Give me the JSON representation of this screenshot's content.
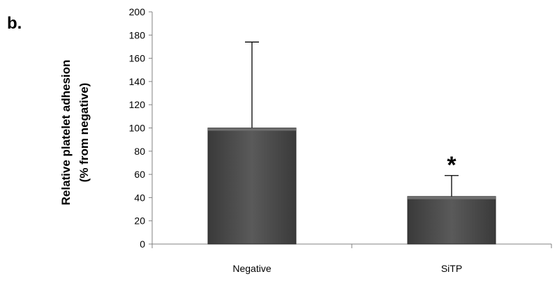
{
  "panel_label": "b.",
  "chart_data": {
    "type": "bar",
    "categories": [
      "Negative",
      "SiTP"
    ],
    "values": [
      100,
      41
    ],
    "error_upper": [
      174,
      59
    ],
    "ylabel": [
      "Relative platelet adhesion",
      "(% from negative)"
    ],
    "ylim": [
      0,
      200
    ],
    "yticks": [
      0,
      20,
      40,
      60,
      80,
      100,
      120,
      140,
      160,
      180,
      200
    ],
    "annotations": [
      {
        "category": "SiTP",
        "text": "*"
      }
    ],
    "grid": false,
    "legend": "none",
    "bar_color": "#4a4a4a"
  }
}
